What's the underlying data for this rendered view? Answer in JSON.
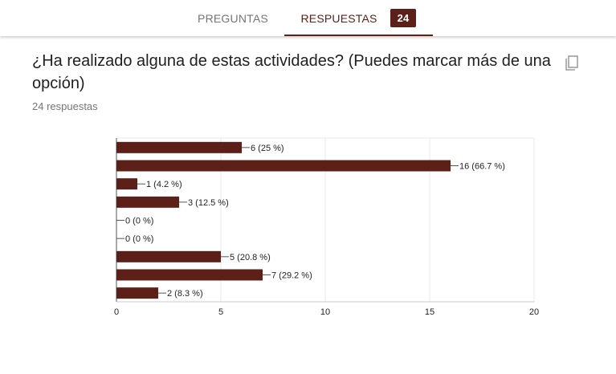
{
  "tabs": {
    "preguntas_label": "PREGUNTAS",
    "respuestas_label": "RESPUESTAS",
    "respuestas_badge": "24"
  },
  "question": {
    "title": "¿Ha realizado alguna de estas actividades? (Puedes marcar más de una opción)",
    "response_count": "24 respuestas",
    "copy_icon": "copy-icon"
  },
  "colors": {
    "accent": "#5c2018",
    "bar": "#5c2018",
    "gridline": "#e8e8e8"
  },
  "chart_data": {
    "type": "bar",
    "orientation": "horizontal",
    "categories": [
      "",
      "",
      "",
      "",
      "",
      "",
      "",
      "",
      ""
    ],
    "values": [
      6,
      16,
      1,
      3,
      0,
      0,
      5,
      7,
      2
    ],
    "data_labels": [
      "6 (25 %)",
      "16 (66.7 %)",
      "1 (4.2 %)",
      "3 (12.5 %)",
      "0 (0 %)",
      "0 (0 %)",
      "5 (20.8 %)",
      "7 (29.2 %)",
      "2 (8.3 %)"
    ],
    "xlim": [
      0,
      20
    ],
    "xticks": [
      0,
      5,
      10,
      15,
      20
    ],
    "title": "",
    "xlabel": "",
    "ylabel": "",
    "grid": true
  }
}
